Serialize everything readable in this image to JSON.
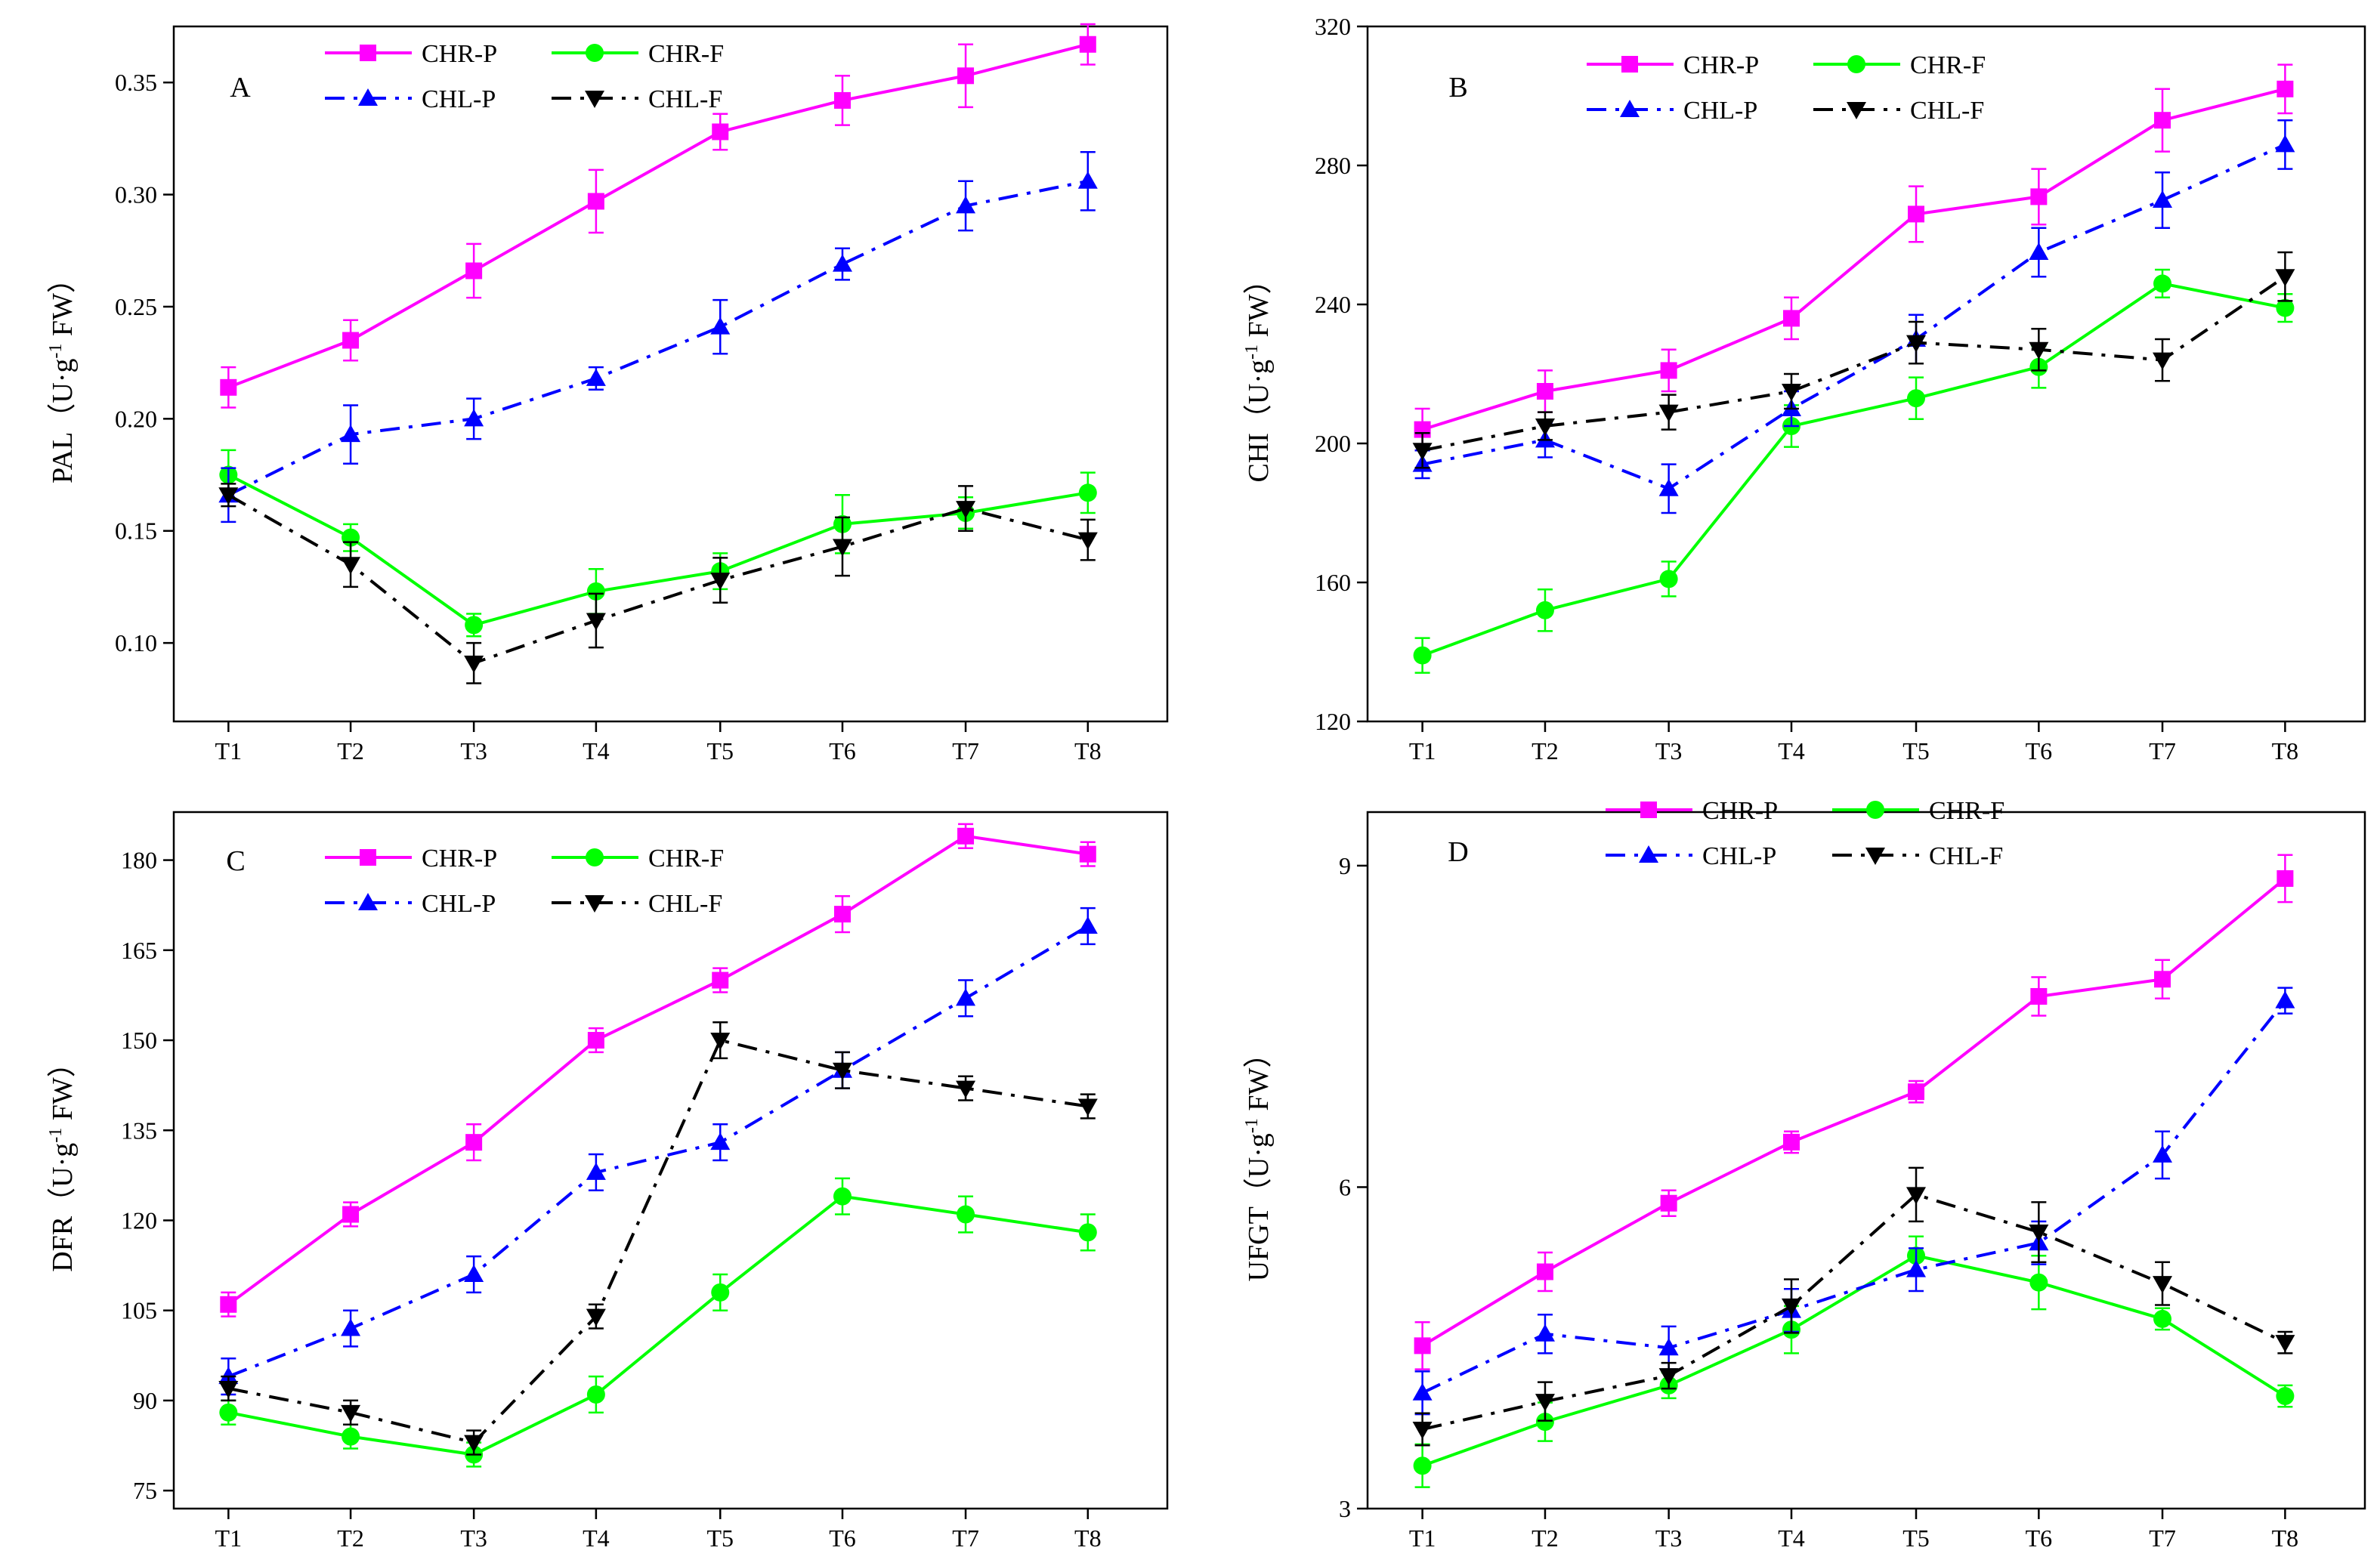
{
  "chart_data": [
    {
      "id": "A",
      "panel_label": "A",
      "type": "line",
      "ylabel_main": "PAL（U·g",
      "ylabel_sup": "-1",
      "ylabel_tail": " FW）",
      "categories": [
        "T1",
        "T2",
        "T3",
        "T4",
        "T5",
        "T6",
        "T7",
        "T8"
      ],
      "ylim": [
        0.065,
        0.375
      ],
      "yticks": [
        0.1,
        0.15,
        0.2,
        0.25,
        0.3,
        0.35
      ],
      "ytick_labels": [
        "0.10",
        "0.15",
        "0.20",
        "0.25",
        "0.30",
        "0.35"
      ],
      "series": [
        {
          "name": "CHR-P",
          "values": [
            0.214,
            0.235,
            0.266,
            0.297,
            0.328,
            0.342,
            0.353,
            0.367
          ],
          "errors": [
            0.009,
            0.009,
            0.012,
            0.014,
            0.008,
            0.011,
            0.014,
            0.009
          ]
        },
        {
          "name": "CHR-F",
          "values": [
            0.175,
            0.147,
            0.108,
            0.123,
            0.132,
            0.153,
            0.158,
            0.167
          ],
          "errors": [
            0.011,
            0.006,
            0.005,
            0.01,
            0.008,
            0.013,
            0.007,
            0.009
          ]
        },
        {
          "name": "CHL-P",
          "values": [
            0.166,
            0.193,
            0.2,
            0.218,
            0.241,
            0.269,
            0.295,
            0.306
          ],
          "errors": [
            0.012,
            0.013,
            0.009,
            0.005,
            0.012,
            0.007,
            0.011,
            0.013
          ]
        },
        {
          "name": "CHL-F",
          "values": [
            0.166,
            0.135,
            0.091,
            0.11,
            0.128,
            0.143,
            0.16,
            0.146
          ],
          "errors": [
            0.005,
            0.01,
            0.009,
            0.012,
            0.01,
            0.013,
            0.01,
            0.009
          ]
        }
      ]
    },
    {
      "id": "B",
      "panel_label": "B",
      "type": "line",
      "ylabel_main": "CHI（U·g",
      "ylabel_sup": "-1",
      "ylabel_tail": " FW）",
      "categories": [
        "T1",
        "T2",
        "T3",
        "T4",
        "T5",
        "T6",
        "T7",
        "T8"
      ],
      "ylim": [
        120,
        320
      ],
      "yticks": [
        120,
        160,
        200,
        240,
        280,
        320
      ],
      "ytick_labels": [
        "120",
        "160",
        "200",
        "240",
        "280",
        "320"
      ],
      "series": [
        {
          "name": "CHR-P",
          "values": [
            204,
            215,
            221,
            236,
            266,
            271,
            293,
            302
          ],
          "errors": [
            6,
            6,
            6,
            6,
            8,
            8,
            9,
            7
          ]
        },
        {
          "name": "CHR-F",
          "values": [
            139,
            152,
            161,
            205,
            213,
            222,
            246,
            239
          ],
          "errors": [
            5,
            6,
            5,
            6,
            6,
            6,
            4,
            4
          ]
        },
        {
          "name": "CHL-P",
          "values": [
            194,
            201,
            187,
            210,
            230,
            255,
            270,
            286
          ],
          "errors": [
            4,
            5,
            7,
            5,
            7,
            7,
            8,
            7
          ]
        },
        {
          "name": "CHL-F",
          "values": [
            198,
            205,
            209,
            215,
            229,
            227,
            224,
            248
          ],
          "errors": [
            5,
            4,
            5,
            5,
            6,
            6,
            6,
            7
          ]
        }
      ]
    },
    {
      "id": "C",
      "panel_label": "C",
      "type": "line",
      "ylabel_main": "DFR（U·g",
      "ylabel_sup": "-1",
      "ylabel_tail": " FW）",
      "categories": [
        "T1",
        "T2",
        "T3",
        "T4",
        "T5",
        "T6",
        "T7",
        "T8"
      ],
      "ylim": [
        72,
        188
      ],
      "yticks": [
        75,
        90,
        105,
        120,
        135,
        150,
        165,
        180
      ],
      "ytick_labels": [
        "75",
        "90",
        "105",
        "120",
        "135",
        "150",
        "165",
        "180"
      ],
      "series": [
        {
          "name": "CHR-P",
          "values": [
            106,
            121,
            133,
            150,
            160,
            171,
            184,
            181
          ],
          "errors": [
            2,
            2,
            3,
            2,
            2,
            3,
            2,
            2
          ]
        },
        {
          "name": "CHR-F",
          "values": [
            88,
            84,
            81,
            91,
            108,
            124,
            121,
            118
          ],
          "errors": [
            2,
            2,
            2,
            3,
            3,
            3,
            3,
            3
          ]
        },
        {
          "name": "CHL-P",
          "values": [
            94,
            102,
            111,
            128,
            133,
            145,
            157,
            169
          ],
          "errors": [
            3,
            3,
            3,
            3,
            3,
            3,
            3,
            3
          ]
        },
        {
          "name": "CHL-F",
          "values": [
            92,
            88,
            83,
            104,
            150,
            145,
            142,
            139
          ],
          "errors": [
            2,
            2,
            2,
            2,
            3,
            3,
            2,
            2
          ]
        }
      ]
    },
    {
      "id": "D",
      "panel_label": "D",
      "type": "line",
      "ylabel_main": "UFGT（U·g",
      "ylabel_sup": "-1",
      "ylabel_tail": " FW）",
      "categories": [
        "T1",
        "T2",
        "T3",
        "T4",
        "T5",
        "T6",
        "T7",
        "T8"
      ],
      "ylim": [
        3,
        9.5
      ],
      "yticks": [
        3,
        6,
        9
      ],
      "ytick_labels": [
        "3",
        "6",
        "9"
      ],
      "series": [
        {
          "name": "CHR-P",
          "values": [
            4.52,
            5.21,
            5.85,
            6.42,
            6.89,
            7.78,
            7.94,
            8.88
          ],
          "errors": [
            0.22,
            0.18,
            0.12,
            0.1,
            0.1,
            0.18,
            0.18,
            0.22
          ]
        },
        {
          "name": "CHR-F",
          "values": [
            3.4,
            3.81,
            4.15,
            4.67,
            5.36,
            5.11,
            4.77,
            4.05
          ],
          "errors": [
            0.2,
            0.18,
            0.12,
            0.22,
            0.18,
            0.25,
            0.1,
            0.1
          ]
        },
        {
          "name": "CHL-P",
          "values": [
            4.08,
            4.63,
            4.5,
            4.85,
            5.23,
            5.48,
            6.3,
            7.74
          ],
          "errors": [
            0.2,
            0.18,
            0.2,
            0.2,
            0.2,
            0.2,
            0.22,
            0.12
          ]
        },
        {
          "name": "CHL-F",
          "values": [
            3.74,
            4.0,
            4.24,
            4.89,
            5.93,
            5.58,
            5.1,
            4.55
          ],
          "errors": [
            0.15,
            0.18,
            0.12,
            0.25,
            0.25,
            0.28,
            0.2,
            0.1
          ]
        }
      ]
    }
  ],
  "series_style": {
    "CHR-P": {
      "color": "#ff00ff",
      "marker": "square",
      "dash": "solid"
    },
    "CHR-F": {
      "color": "#00ff00",
      "marker": "circle",
      "dash": "solid"
    },
    "CHL-P": {
      "color": "#0000ff",
      "marker": "triangle-up",
      "dash": "dashdot"
    },
    "CHL-F": {
      "color": "#000000",
      "marker": "triangle-down",
      "dash": "dashdot"
    }
  }
}
